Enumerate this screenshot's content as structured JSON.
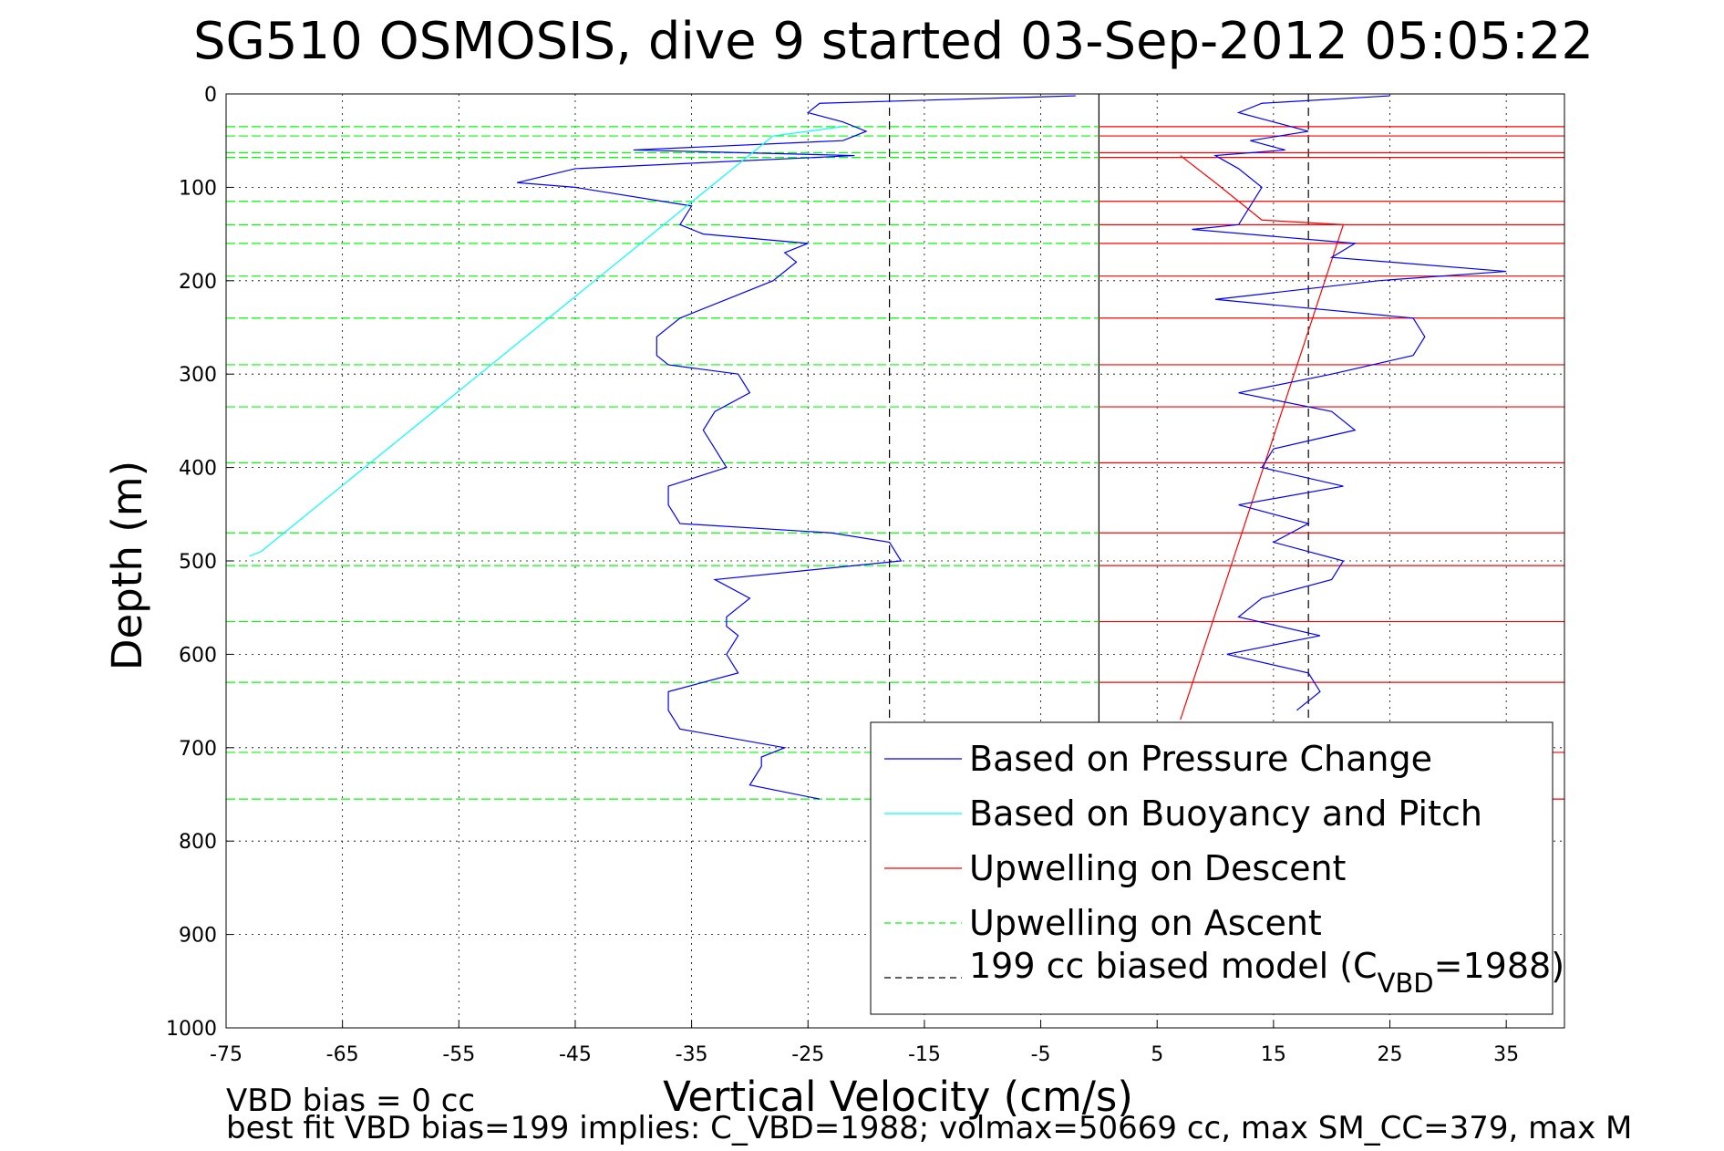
{
  "chart_data": {
    "type": "line",
    "title": "SG510 OSMOSIS, dive 9 started 03-Sep-2012 05:05:22",
    "xlabel": "Vertical Velocity (cm/s)",
    "ylabel": "Depth (m)",
    "xlim": [
      -75,
      40
    ],
    "ylim": [
      0,
      1000
    ],
    "y_reversed": true,
    "xticks": [
      -75,
      -65,
      -55,
      -45,
      -35,
      -25,
      -15,
      -5,
      5,
      15,
      25,
      35
    ],
    "yticks": [
      0,
      100,
      200,
      300,
      400,
      500,
      600,
      700,
      800,
      900,
      1000
    ],
    "grid": true,
    "legend_position": "bottom-right",
    "footer_lines": [
      "VBD bias = 0 cc",
      "best fit VBD bias=199 implies: C_VBD=1988; volmax=50669 cc, max SM_CC=379, max M"
    ],
    "colors": {
      "pressure": "#0000ff",
      "buoyancy": "#00ffff",
      "descent": "#ff0000",
      "ascent": "#00ff00",
      "model": "#000000"
    },
    "series": [
      {
        "key": "pressure",
        "name": "Based on Pressure Change",
        "style": "solid",
        "descent": {
          "depth": [
            2,
            10,
            20,
            30,
            40,
            50,
            60,
            66,
            80,
            95,
            100,
            120,
            140,
            150,
            160,
            170,
            180,
            200,
            220,
            240,
            260,
            280,
            290,
            300,
            320,
            340,
            360,
            380,
            400,
            420,
            440,
            460,
            470,
            480,
            500,
            520,
            540,
            560,
            570,
            580,
            600,
            620,
            640,
            660,
            680,
            700,
            710,
            720,
            740,
            755
          ],
          "velocity": [
            -2,
            -24,
            -25,
            -22,
            -20,
            -22,
            -40,
            -21,
            -45,
            -50,
            -45,
            -35,
            -36,
            -34,
            -25,
            -27,
            -26,
            -28,
            -32,
            -36,
            -38,
            -38,
            -37,
            -31,
            -30,
            -33,
            -34,
            -33,
            -32,
            -37,
            -37,
            -36,
            -23,
            -18,
            -17,
            -33,
            -30,
            -32,
            -32,
            -31,
            -32,
            -31,
            -37,
            -37,
            -36,
            -27,
            -29,
            -29,
            -30,
            -24
          ]
        },
        "ascent": {
          "depth": [
            2,
            10,
            20,
            30,
            40,
            50,
            60,
            66,
            80,
            100,
            120,
            140,
            145,
            160,
            175,
            190,
            200,
            220,
            240,
            260,
            280,
            300,
            320,
            340,
            360,
            380,
            400,
            420,
            440,
            460,
            480,
            500,
            520,
            540,
            560,
            580,
            600,
            620,
            640,
            660
          ],
          "velocity": [
            25,
            14,
            12,
            15,
            18,
            13,
            16,
            10,
            12,
            14,
            13,
            12,
            8,
            22,
            20,
            35,
            24,
            10,
            27,
            28,
            27,
            20,
            12,
            20,
            22,
            15,
            14,
            21,
            12,
            18,
            15,
            21,
            20,
            14,
            12,
            19,
            11,
            18,
            19,
            17
          ]
        }
      },
      {
        "key": "buoyancy",
        "name": "Based on Buoyancy and Pitch",
        "style": "solid",
        "spikes_depth": [
          35,
          45,
          490,
          495
        ],
        "spikes_velocity": [
          -22,
          -28,
          -72,
          -73
        ]
      },
      {
        "key": "descent",
        "name": "Upwelling on Descent",
        "style": "solid",
        "fit_line": {
          "velocity": [
            7,
            21,
            14,
            10,
            7
          ],
          "depth": [
            670,
            140,
            135,
            95,
            66
          ]
        },
        "horizontal_lines_depth": [
          35,
          45,
          63,
          68,
          115,
          140,
          160,
          195,
          240,
          290,
          335,
          395,
          470,
          505,
          565,
          630,
          705,
          755
        ]
      },
      {
        "key": "ascent",
        "name": "Upwelling on Ascent",
        "style": "dashed",
        "horizontal_lines_depth": [
          35,
          45,
          63,
          68,
          115,
          140,
          160,
          195,
          240,
          290,
          335,
          395,
          470,
          505,
          565,
          630,
          705,
          755
        ]
      },
      {
        "key": "model",
        "name": "199 cc biased model (C",
        "name_sub": "VBD",
        "name_suffix": "=1988)",
        "style": "dashed",
        "x_values": [
          -18,
          18
        ]
      }
    ]
  }
}
